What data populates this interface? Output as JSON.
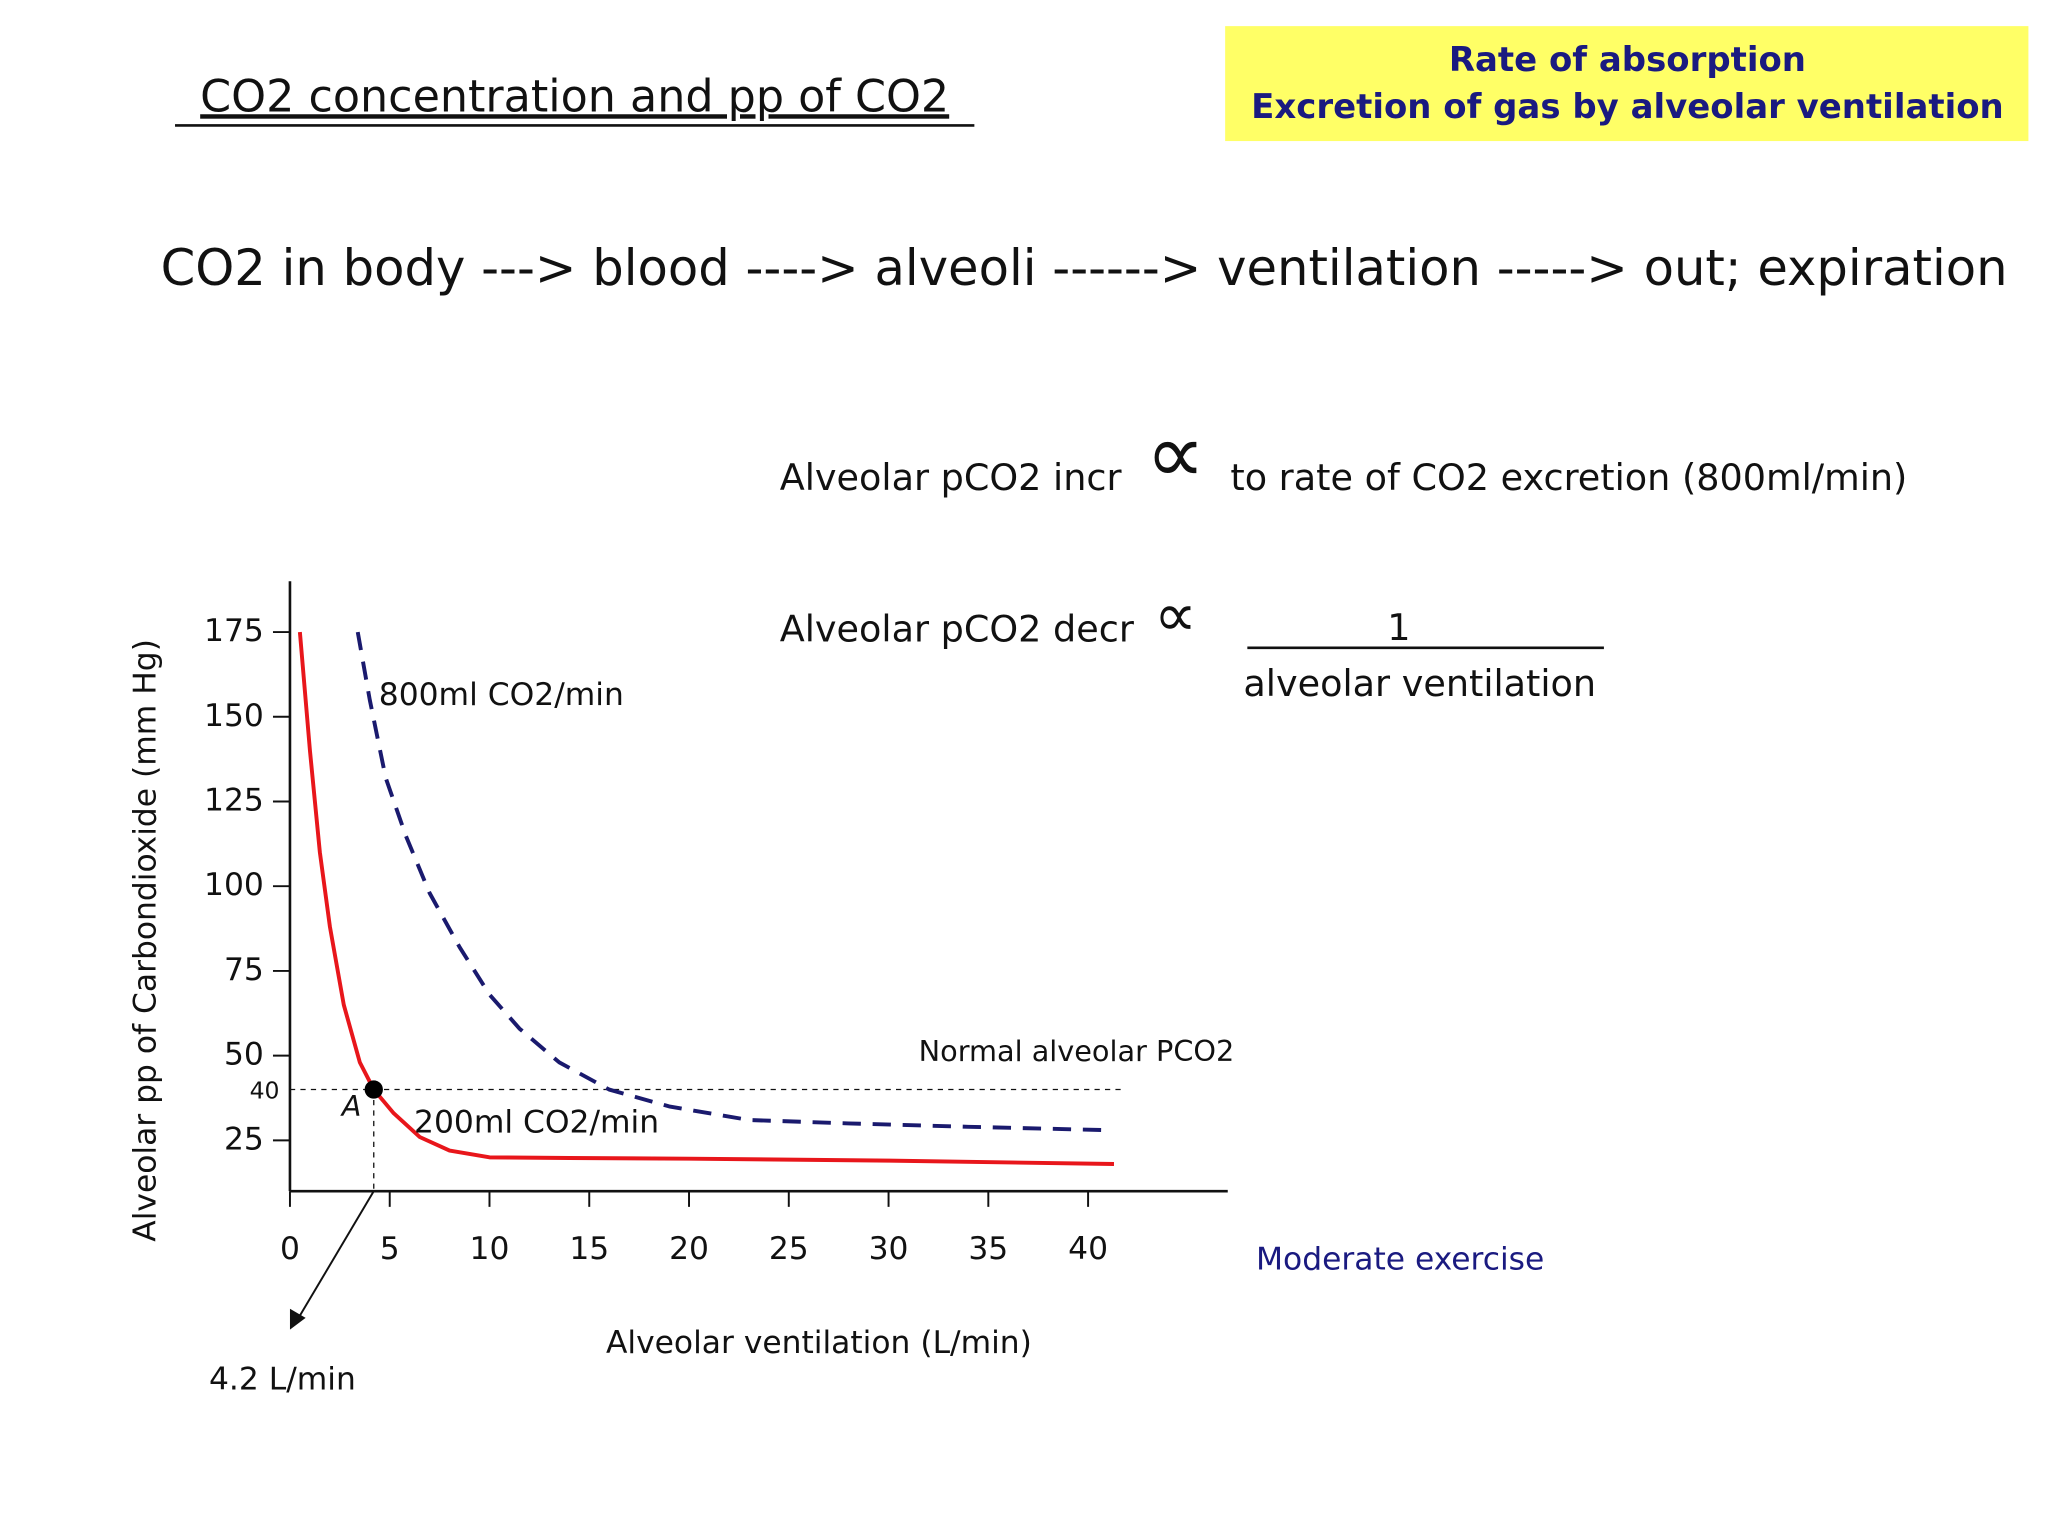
{
  "header": {
    "title": "CO2 concentration and pp of CO2",
    "box": [
      "Rate of absorption",
      "Excretion of gas by alveolar ventilation"
    ]
  },
  "flow": "CO2 in body ---> blood ----> alveoli ------> ventilation -----> out; expiration",
  "relations": [
    {
      "left": "Alveolar pCO2 incr",
      "symbol": "∝",
      "right": "to rate of CO2 excretion (800ml/min)"
    },
    {
      "left": "Alveolar pCO2 decr",
      "symbol": "∝",
      "numerator": "1",
      "denominator": "alveolar ventilation"
    }
  ],
  "chart_data": {
    "type": "line",
    "x_label": "Alveolar ventilation (L/min)",
    "y_label": "Alveolar pp of Carbondioxide (mm Hg)",
    "xlim": [
      0,
      47
    ],
    "ylim": [
      10,
      190
    ],
    "xticks": [
      0,
      5,
      10,
      15,
      20,
      25,
      30,
      35,
      40
    ],
    "yticks": [
      25,
      50,
      75,
      100,
      125,
      150,
      175
    ],
    "series": [
      {
        "name": "800ml CO2/min",
        "color": "#1a1a6e",
        "dashed": true,
        "x": [
          3.4,
          4.0,
          4.8,
          5.8,
          7,
          8.5,
          10,
          11.5,
          13.5,
          16,
          19,
          23,
          28,
          34,
          41
        ],
        "values": [
          175,
          155,
          132,
          115,
          98,
          82,
          68,
          58,
          48,
          40,
          35,
          31,
          30,
          29,
          28
        ]
      },
      {
        "name": "200ml CO2/min",
        "color": "#e8161b",
        "dashed": false,
        "x": [
          0.5,
          1.0,
          1.5,
          2.0,
          2.7,
          3.5,
          4.2,
          5.2,
          6.5,
          8,
          10,
          14,
          20,
          30,
          41.3
        ],
        "values": [
          175,
          140,
          110,
          88,
          65,
          48,
          40,
          33,
          26,
          22,
          20,
          19.8,
          19.6,
          19,
          18
        ]
      }
    ],
    "reference_line": {
      "y": 40,
      "label": "Normal alveolar PCO2"
    },
    "point": {
      "label": "A",
      "x": {
        "value": 4.2,
        "label": "4.2 L/min"
      },
      "y": 40
    },
    "annotation": "Moderate exercise"
  }
}
